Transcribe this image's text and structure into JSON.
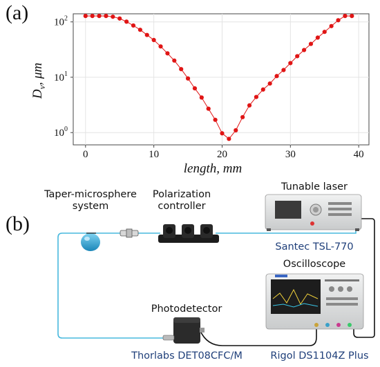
{
  "panel_a_label": "(a)",
  "panel_b_label": "(b)",
  "chart_data": {
    "type": "line",
    "xlabel": "length, mm",
    "ylabel_main": "D",
    "ylabel_sub": "v",
    "ylabel_unit": ", μm",
    "xlim": [
      -1.8,
      41.5
    ],
    "ylim": [
      0.6,
      140
    ],
    "yscale": "log",
    "xticks": [
      0,
      10,
      20,
      30,
      40
    ],
    "yticks": [
      {
        "value": 1,
        "base": "10",
        "exp": "0"
      },
      {
        "value": 10,
        "base": "10",
        "exp": "1"
      },
      {
        "value": 100,
        "base": "10",
        "exp": "2"
      }
    ],
    "grid": true,
    "series": [
      {
        "color": "#e01515",
        "x": [
          0,
          1,
          2,
          3,
          4,
          5,
          6,
          7,
          8,
          9,
          10,
          11,
          12,
          13,
          14,
          15,
          16,
          17,
          18,
          19,
          20,
          21,
          22,
          23,
          24,
          25,
          26,
          27,
          28,
          29,
          30,
          31,
          32,
          33,
          34,
          35,
          36,
          37,
          38,
          39
        ],
        "y": [
          128,
          128,
          128,
          128,
          124,
          115,
          101,
          86,
          72,
          58,
          47,
          36,
          27,
          20,
          14,
          9.5,
          6.3,
          4.3,
          2.7,
          1.7,
          0.97,
          0.77,
          1.1,
          1.9,
          3.1,
          4.4,
          6.0,
          7.7,
          10.5,
          13.5,
          18,
          24,
          31,
          40,
          52,
          66,
          84,
          107,
          128,
          128
        ]
      }
    ]
  },
  "diagram": {
    "taper_label_line1": "Taper-microsphere",
    "taper_label_line2": "system",
    "polarization_label_line1": "Polarization",
    "polarization_label_line2": "controller",
    "laser_label": "Tunable laser",
    "laser_model": "Santec TSL-770",
    "oscilloscope_label": "Oscilloscope",
    "oscilloscope_model": "Rigol DS1104Z Plus",
    "photodetector_label": "Photodetector",
    "photodetector_model": "Thorlabs DET08CFC/M",
    "fiber_color": "#47b8de"
  }
}
